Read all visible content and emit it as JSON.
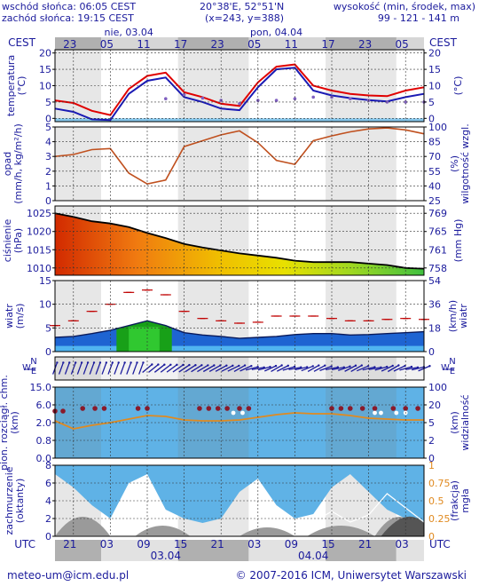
{
  "header": {
    "sunrise": "wschód słońca: 06:05 CEST",
    "sunset": "zachód słońca: 19:15 CEST",
    "coords": "20°38'E, 52°51'N",
    "grid": "(x=243, y=388)",
    "alt_label": "wysokość (min, środek, max)",
    "alt_values": "99 - 121 - 141 m"
  },
  "top_axis": {
    "tz": "CEST",
    "day1": "nie, 03.04",
    "day2": "pon, 04.04",
    "hours": [
      "23",
      "05",
      "11",
      "17",
      "23",
      "05",
      "11",
      "17",
      "23",
      "05"
    ]
  },
  "bottom_axis": {
    "tz": "UTC",
    "hours": [
      "21",
      "03",
      "09",
      "15",
      "21",
      "03",
      "09",
      "15",
      "21",
      "03"
    ],
    "date1": "03.04",
    "date2": "04.04"
  },
  "footer": {
    "email": "meteo-um@icm.edu.pl",
    "copyright": "© 2007-2016 ICM, Uniwersytet Warszawski"
  },
  "chart_data": [
    {
      "type": "line",
      "name": "temperature",
      "ylabel_left": "temperatura\n(°C)",
      "ylabel_right": "(°C)",
      "ticks_left": [
        "20",
        "15",
        "10",
        "5",
        "0"
      ],
      "ticks_right": [
        "20",
        "15",
        "10",
        "5",
        "0"
      ],
      "ylim": [
        -1,
        21
      ],
      "x_hours": [
        0,
        3,
        6,
        9,
        12,
        15,
        18,
        21,
        24,
        27,
        30,
        33,
        36,
        39,
        42,
        45,
        48,
        51,
        54,
        57,
        60
      ],
      "series": [
        {
          "color": "#e00000",
          "values": [
            5.5,
            4.7,
            2.3,
            1.0,
            9.0,
            13.0,
            14.0,
            8.0,
            6.5,
            4.5,
            3.8,
            11.0,
            15.8,
            16.5,
            10.0,
            8.5,
            7.5,
            7.0,
            6.8,
            8.5,
            9.5
          ]
        },
        {
          "color": "#1a1ab4",
          "values": [
            3.0,
            2.0,
            -0.3,
            -0.5,
            7.5,
            11.5,
            12.5,
            6.5,
            5.0,
            3.0,
            2.5,
            9.5,
            15.0,
            15.5,
            8.5,
            7.0,
            6.2,
            5.6,
            5.2,
            6.5,
            7.5
          ]
        },
        {
          "color": "#8060c0",
          "values": [
            null,
            null,
            null,
            null,
            null,
            null,
            6.0,
            7.2,
            6.2,
            5.5,
            4.5,
            5.5,
            5.5,
            6.0,
            6.5,
            6.5,
            6.0,
            5.5,
            5.0,
            5.0,
            5.0
          ]
        }
      ]
    },
    {
      "type": "line",
      "name": "precipitation-humidity",
      "ylabel_left": "opad\n(mm/h, kg/m²/h)",
      "ylabel_right": "(%)\nwilgotność wzgl.",
      "ticks_left": [
        "5",
        "4",
        "3",
        "2",
        "1",
        "0"
      ],
      "ticks_right": [
        "100",
        "85",
        "70",
        "55",
        "40",
        "25"
      ],
      "ylim": [
        25,
        100
      ],
      "humidity": [
        70,
        72,
        77,
        78,
        53,
        42,
        46,
        80,
        86,
        92,
        96,
        84,
        66,
        62,
        86,
        91,
        95,
        98,
        99,
        97,
        93
      ]
    },
    {
      "type": "area",
      "name": "pressure",
      "ylabel_left": "ciśnienie\n(hPa)",
      "ylabel_right": "(mm Hg)",
      "ticks_left": [
        "1025",
        "1020",
        "1015",
        "1010"
      ],
      "ticks_right": [
        "769",
        "765",
        "761",
        "758"
      ],
      "ylim": [
        1008,
        1027
      ],
      "values": [
        1025.0,
        1024.0,
        1022.8,
        1022.2,
        1021.2,
        1019.6,
        1018.2,
        1016.6,
        1015.6,
        1014.8,
        1014.0,
        1013.4,
        1012.8,
        1012.0,
        1011.6,
        1011.6,
        1011.6,
        1011.2,
        1010.8,
        1010.0,
        1009.8
      ]
    },
    {
      "type": "area",
      "name": "wind",
      "ylabel_left": "wiatr\n(m/s)",
      "ylabel_right": "(km/h)\nwiatr",
      "ticks_left": [
        "15",
        "10",
        "5",
        "0"
      ],
      "ticks_right": [
        "54",
        "36",
        "18",
        "0"
      ],
      "ylim": [
        0,
        15
      ],
      "speed": [
        3.0,
        3.2,
        3.8,
        4.5,
        5.5,
        6.5,
        5.5,
        4.0,
        3.5,
        3.2,
        2.8,
        3.0,
        3.2,
        3.6,
        3.8,
        3.8,
        3.5,
        3.6,
        3.8,
        4.0,
        4.2
      ],
      "gusts": [
        5.5,
        6.5,
        8.5,
        10.0,
        12.5,
        13.0,
        12.0,
        8.5,
        7.0,
        6.5,
        6.0,
        6.2,
        7.5,
        7.5,
        7.5,
        7.0,
        6.5,
        6.5,
        6.8,
        7.0,
        6.8
      ]
    },
    {
      "type": "scatter",
      "name": "wind-direction",
      "compass": [
        "N",
        "W",
        "E",
        "S"
      ]
    },
    {
      "type": "line",
      "name": "visibility",
      "ylabel_left": "pion. rozciągł. chm.\n(km)",
      "ylabel_right": "(km)\nwidzialność",
      "ticks_left": [
        "15.0",
        "6.0",
        "2.0",
        "0.8",
        "0.0"
      ],
      "ticks_right": [
        "100",
        "20",
        "5",
        "2",
        "0"
      ],
      "visibility_km": [
        20,
        10,
        12,
        14,
        16,
        18,
        12,
        10,
        10,
        10,
        12,
        16,
        18,
        20,
        20,
        16,
        12,
        10,
        10,
        10,
        10
      ]
    },
    {
      "type": "area",
      "name": "cloud-cover",
      "ylabel_left": "zachmurzenie\n(oktanty)",
      "ylabel_right": "(frakcja)\nmgła",
      "ticks_left": [
        "8",
        "6",
        "4",
        "2",
        "0"
      ],
      "ticks_right": [
        "1",
        "0.75",
        "0.5",
        "0.25",
        "0"
      ],
      "ylim": [
        0,
        8
      ],
      "cloud": [
        7.0,
        5.5,
        3.5,
        2.0,
        6.0,
        7.0,
        3.0,
        2.0,
        1.5,
        2.0,
        5.0,
        6.5,
        3.5,
        2.0,
        2.5,
        5.5,
        7.0,
        5.0,
        3.0,
        2.0,
        1.0
      ],
      "fog": [
        0,
        0,
        0,
        0,
        0,
        0,
        0,
        0,
        0,
        0,
        0,
        0,
        0,
        0,
        0.2,
        0.35,
        0.2,
        0.3,
        0.6,
        0.4,
        0.2
      ]
    }
  ]
}
